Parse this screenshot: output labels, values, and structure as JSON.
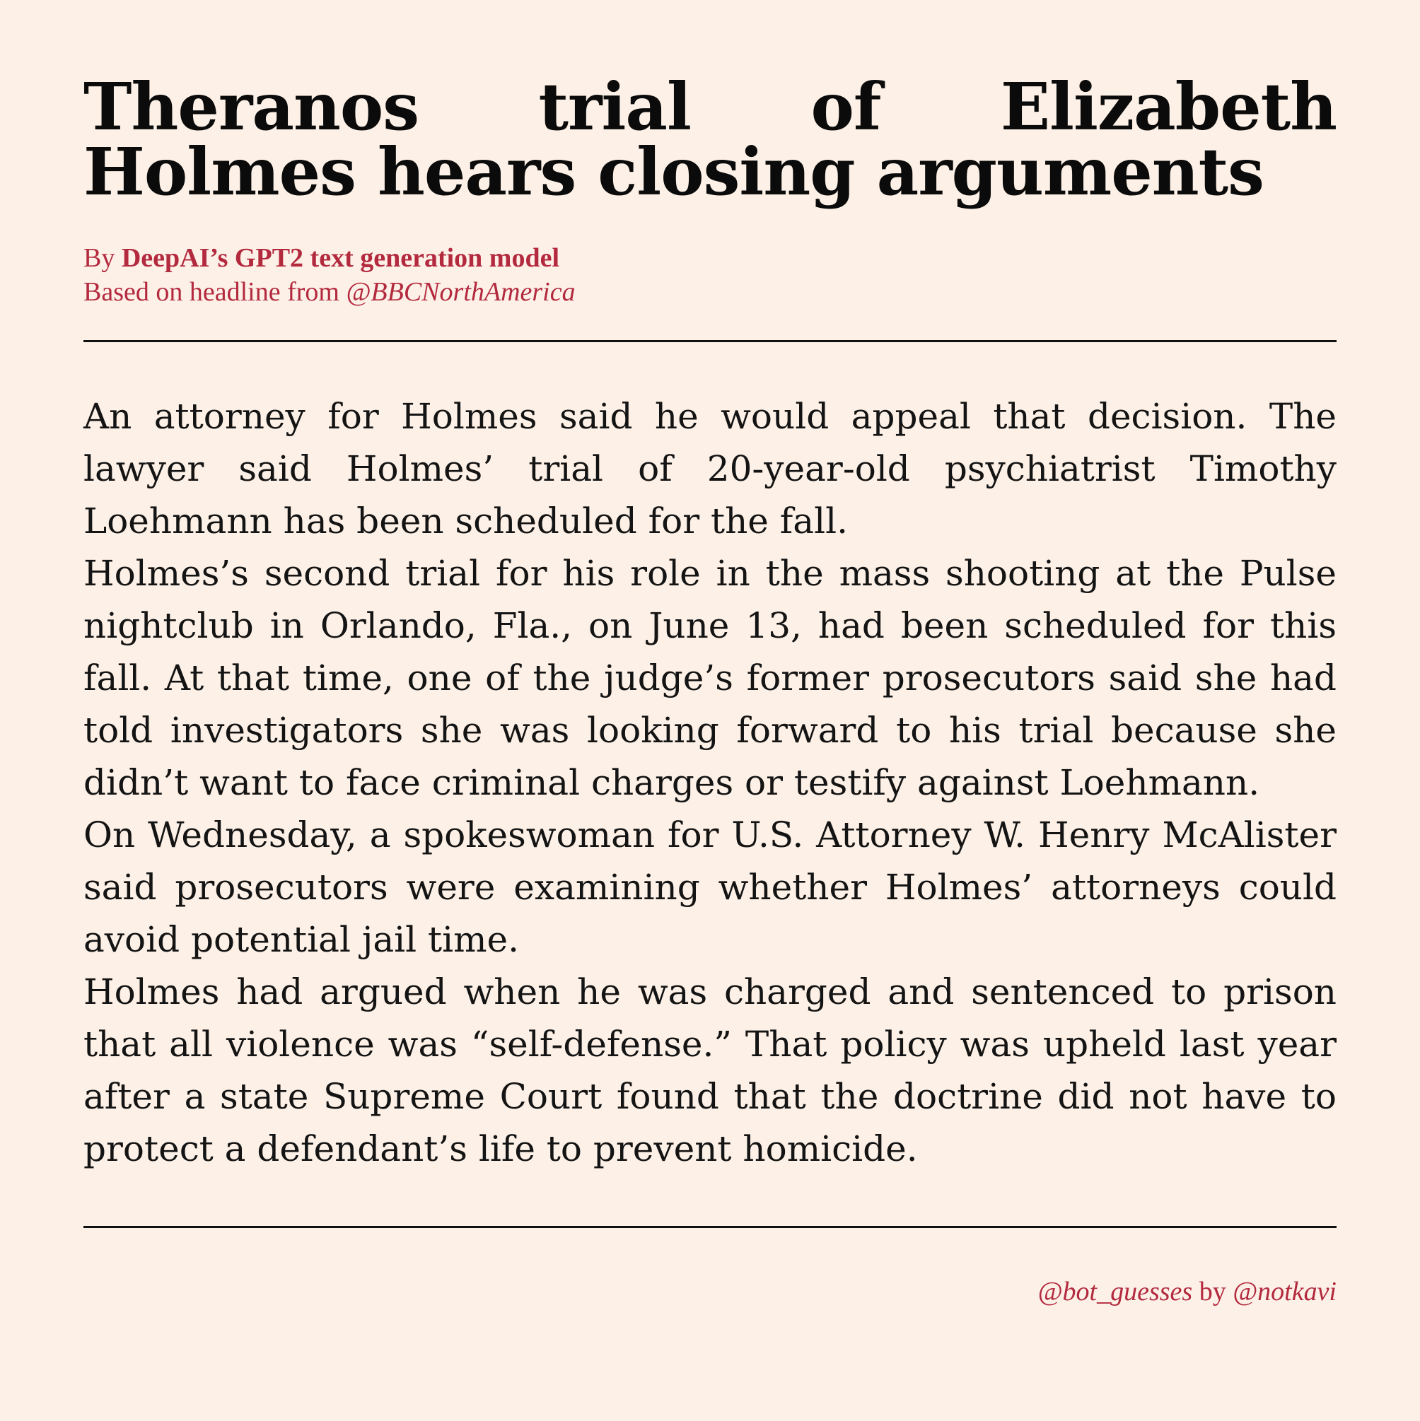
{
  "headline": "Theranos trial of Elizabeth Holmes hears closing arguments",
  "byline": {
    "prefix": "By ",
    "author": "DeepAI’s GPT2 text generation model",
    "source_prefix": "Based on headline from ",
    "source_handle": "@BBCNorthAmerica"
  },
  "article": {
    "paragraphs": [
      "An attorney for Holmes said he would appeal that decision. The lawyer said Holmes’ trial of 20-year-old psychiatrist Timothy Loehmann has been scheduled for the fall.",
      "Holmes’s second trial for his role in the mass shooting at the Pulse nightclub in Orlando, Fla., on June 13, had been scheduled for this fall. At that time, one of the judge’s former prosecutors said she had told investigators she was looking forward to his trial because she didn’t want to face criminal charges or testify against Loehmann.",
      "On Wednesday, a spokeswoman for U.S. Attorney W. Henry McAlister said prosecutors were examining whether Holmes’ attorneys could avoid potential jail time.",
      "Holmes had argued when he was charged and sentenced to prison that all violence was “self-defense.” That policy was upheld last year after a state Supreme Court found that the doctrine did not have to protect a defendant’s life to prevent homicide."
    ]
  },
  "footer": {
    "bot_handle": "@bot_guesses",
    "by_text": " by ",
    "author_handle": "@notkavi"
  },
  "colors": {
    "background": "#fdf1e7",
    "text": "#111111",
    "accent": "#b32a3f"
  }
}
